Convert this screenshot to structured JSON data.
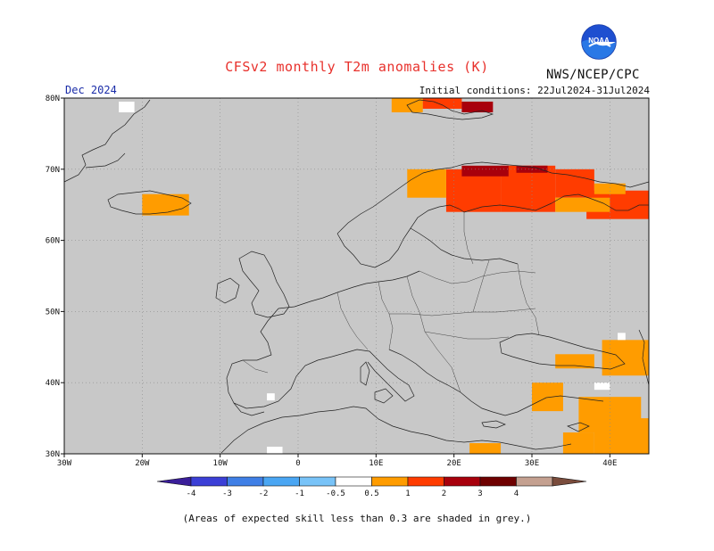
{
  "title": "CFSv2 monthly T2m anomalies (K)",
  "valid_month": "Dec 2024",
  "agency": "NWS/NCEP/CPC",
  "logo_text": "NOAA",
  "initial_conditions": "Initial conditions: 22Jul2024-31Jul2024",
  "footnote": "(Areas of expected skill less than 0.3 are shaded in grey.)",
  "map": {
    "lon_range": [
      -30,
      45
    ],
    "lat_range": [
      30,
      80
    ],
    "lat_ticks": [
      {
        "value": 80,
        "label": "80N"
      },
      {
        "value": 70,
        "label": "70N"
      },
      {
        "value": 60,
        "label": "60N"
      },
      {
        "value": 50,
        "label": "50N"
      },
      {
        "value": 40,
        "label": "40N"
      },
      {
        "value": 30,
        "label": "30N"
      }
    ],
    "lon_ticks": [
      {
        "value": -30,
        "label": "30W"
      },
      {
        "value": -20,
        "label": "20W"
      },
      {
        "value": -10,
        "label": "10W"
      },
      {
        "value": 0,
        "label": "0"
      },
      {
        "value": 10,
        "label": "10E"
      },
      {
        "value": 20,
        "label": "20E"
      },
      {
        "value": 30,
        "label": "30E"
      },
      {
        "value": 40,
        "label": "40E"
      }
    ],
    "grey_color": "#c8c8c8",
    "gridlines": "dotted"
  },
  "colorbar": {
    "levels": [
      "-4",
      "-3",
      "-2",
      "-1",
      "-0.5",
      "0.5",
      "1",
      "2",
      "3",
      "4"
    ],
    "colors": [
      "#3a1e99",
      "#3b3fd6",
      "#3f7fe6",
      "#4aa6f3",
      "#78c3f8",
      "#ffffff",
      "#ff9c00",
      "#ff3c00",
      "#a8000c",
      "#6e0000",
      "#c4a090",
      "#7a4c3c"
    ]
  },
  "chart_data": {
    "type": "heatmap",
    "variable": "T2m anomalies (K)",
    "anomaly_cells": [
      {
        "lon": 19,
        "lat": 66,
        "anomaly_range": "1 to 2"
      },
      {
        "lon": 22,
        "lat": 67,
        "anomaly_range": "1 to 2"
      },
      {
        "lon": 25,
        "lat": 67,
        "anomaly_range": "1 to 2"
      },
      {
        "lon": 28,
        "lat": 68,
        "anomaly_range": "1 to 2"
      },
      {
        "lon": 32,
        "lat": 68,
        "anomaly_range": "1 to 2"
      },
      {
        "lon": 28,
        "lat": 65,
        "anomaly_range": "1 to 2"
      },
      {
        "lon": 22,
        "lat": 69,
        "anomaly_range": "2 to 3"
      },
      {
        "lon": 34,
        "lat": 69,
        "anomaly_range": "0.5 to 1"
      },
      {
        "lon": 40,
        "lat": 65,
        "anomaly_range": "1 to 2"
      },
      {
        "lon": 35,
        "lat": 65,
        "anomaly_range": "0.5 to 1"
      },
      {
        "lon": -18,
        "lat": 65,
        "anomaly_range": "0.5 to 1"
      },
      {
        "lon": 15,
        "lat": 78,
        "anomaly_range": "1 to 2"
      },
      {
        "lon": 20,
        "lat": 78,
        "anomaly_range": "2 to 3"
      },
      {
        "lon": 35,
        "lat": 43,
        "anomaly_range": "0.5 to 1"
      },
      {
        "lon": 33,
        "lat": 38,
        "anomaly_range": "0.5 to 1"
      },
      {
        "lon": 40,
        "lat": 35,
        "anomaly_range": "0.5 to 1"
      },
      {
        "lon": 25,
        "lat": 31,
        "anomaly_range": "0.5 to 1"
      }
    ]
  }
}
